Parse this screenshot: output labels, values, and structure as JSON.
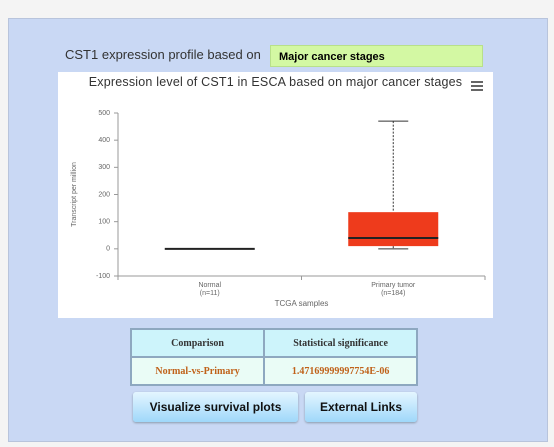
{
  "header": {
    "label": "CST1 expression profile based on",
    "selection": "Major cancer stages"
  },
  "chart_data": {
    "type": "box",
    "title": "Expression level of CST1 in ESCA based on major cancer stages",
    "categories": [
      "Normal",
      "Primary tumor"
    ],
    "sample_sizes": [
      "(n=11)",
      "(n=184)"
    ],
    "boxes": [
      {
        "min": 0,
        "q1": 0,
        "median": 0,
        "q3": 0,
        "max": 0
      },
      {
        "min": 0,
        "q1": 10,
        "median": 40,
        "q3": 135,
        "max": 470
      }
    ],
    "color": "#ee3b1c",
    "ylabel": "Transcript per million",
    "xlabel": "TCGA samples",
    "ylim": [
      -100,
      500
    ],
    "yticks": [
      -100,
      0,
      100,
      200,
      300,
      400,
      500
    ],
    "grid": false
  },
  "table": {
    "columns": [
      "Comparison",
      "Statistical significance"
    ],
    "rows": [
      [
        "Normal-vs-Primary",
        "1.47169999997754E-06"
      ]
    ]
  },
  "buttons": [
    "Visualize survival plots",
    "External Links"
  ]
}
